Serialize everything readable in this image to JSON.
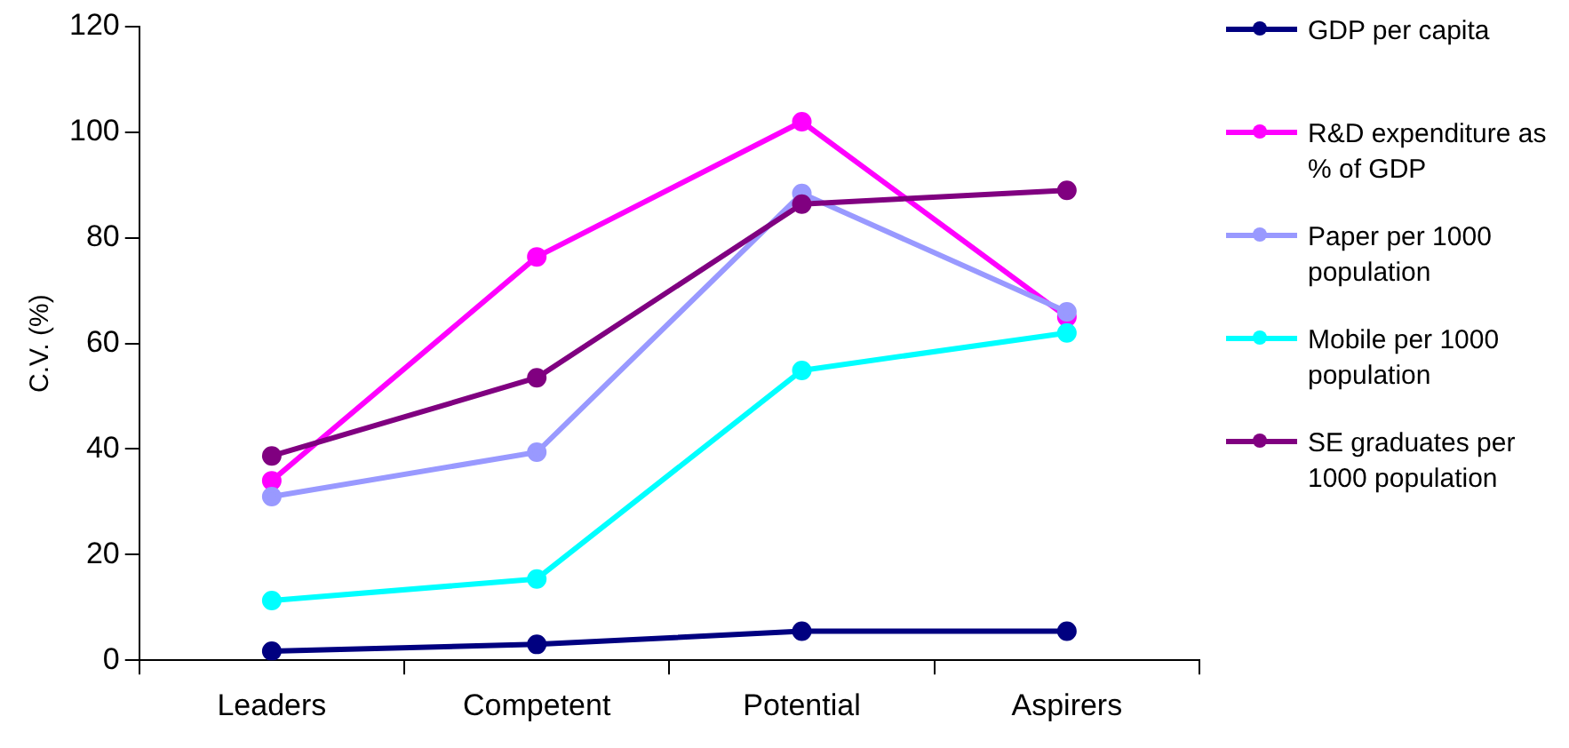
{
  "chart_data": {
    "type": "line",
    "ylabel": "C.V. (%)",
    "categories": [
      "Leaders",
      "Competent",
      "Potential",
      "Aspirers"
    ],
    "ylim": [
      0,
      120
    ],
    "yticks": [
      0,
      20,
      40,
      60,
      80,
      100,
      120
    ],
    "grid": false,
    "legend": "right",
    "marker": "circle",
    "line_style": "solid",
    "series": [
      {
        "name": "GDP per capita",
        "color": "#000080",
        "values": [
          1.7,
          3,
          5.5,
          5.5
        ]
      },
      {
        "name": "R&D expenditure as % of GDP",
        "color": "#ff00ff",
        "values": [
          34,
          76.4,
          102,
          65
        ]
      },
      {
        "name": "Paper per 1000 population",
        "color": "#9999ff",
        "values": [
          31,
          39.4,
          88.4,
          66
        ]
      },
      {
        "name": "Mobile per 1000 population",
        "color": "#00ffff",
        "values": [
          11.3,
          15.4,
          54.9,
          62
        ]
      },
      {
        "name": "SE graduates per 1000 population",
        "color": "#800080",
        "values": [
          38.7,
          53.5,
          86.4,
          89
        ]
      }
    ]
  }
}
